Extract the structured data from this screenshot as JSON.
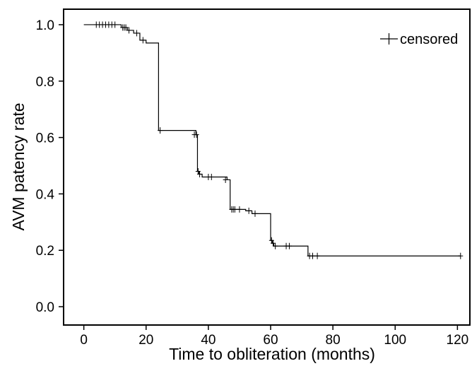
{
  "chart_data": {
    "type": "line",
    "title": "",
    "xlabel": "Time to obliteration (months)",
    "ylabel": "AVM patency rate",
    "xlim": [
      -6.5,
      124
    ],
    "ylim": [
      -0.065,
      1.055
    ],
    "x_ticks": [
      0,
      20,
      40,
      60,
      80,
      100,
      120
    ],
    "x_tick_labels": [
      "0",
      "20",
      "40",
      "60",
      "80",
      "100",
      "120"
    ],
    "y_ticks": [
      0.0,
      0.2,
      0.4,
      0.6,
      0.8,
      1.0
    ],
    "y_tick_labels": [
      "0.0",
      "0.2",
      "0.4",
      "0.6",
      "0.8",
      "1.0"
    ],
    "grid": false,
    "legend": {
      "placement": "top-right",
      "entries": [
        {
          "label": "censored",
          "marker": "plus"
        }
      ]
    },
    "series": [
      {
        "style": "step",
        "points": [
          [
            0,
            1.0
          ],
          [
            12,
            0.99
          ],
          [
            14,
            0.98
          ],
          [
            16,
            0.97
          ],
          [
            18,
            0.945
          ],
          [
            20,
            0.935
          ],
          [
            24,
            0.625
          ],
          [
            36,
            0.61
          ],
          [
            36.5,
            0.48
          ],
          [
            37,
            0.47
          ],
          [
            38,
            0.46
          ],
          [
            46,
            0.45
          ],
          [
            47,
            0.345
          ],
          [
            52,
            0.34
          ],
          [
            54,
            0.33
          ],
          [
            60,
            0.235
          ],
          [
            60.5,
            0.225
          ],
          [
            61,
            0.215
          ],
          [
            72,
            0.18
          ],
          [
            121,
            0.18
          ]
        ]
      }
    ],
    "censored": [
      [
        4,
        1.0
      ],
      [
        5,
        1.0
      ],
      [
        6,
        1.0
      ],
      [
        7,
        1.0
      ],
      [
        8,
        1.0
      ],
      [
        9,
        1.0
      ],
      [
        10,
        1.0
      ],
      [
        12.5,
        0.99
      ],
      [
        13,
        0.99
      ],
      [
        13.5,
        0.99
      ],
      [
        14.5,
        0.98
      ],
      [
        17,
        0.97
      ],
      [
        19,
        0.945
      ],
      [
        24.5,
        0.625
      ],
      [
        35.5,
        0.61
      ],
      [
        36.2,
        0.61
      ],
      [
        36.7,
        0.48
      ],
      [
        37.2,
        0.47
      ],
      [
        40,
        0.46
      ],
      [
        41,
        0.46
      ],
      [
        45.5,
        0.45
      ],
      [
        47.5,
        0.345
      ],
      [
        48,
        0.345
      ],
      [
        48.5,
        0.345
      ],
      [
        50,
        0.345
      ],
      [
        53,
        0.34
      ],
      [
        55,
        0.33
      ],
      [
        60.3,
        0.235
      ],
      [
        60.8,
        0.225
      ],
      [
        61.5,
        0.215
      ],
      [
        65,
        0.215
      ],
      [
        66,
        0.215
      ],
      [
        72.5,
        0.18
      ],
      [
        73.5,
        0.18
      ],
      [
        75,
        0.18
      ],
      [
        121,
        0.18
      ]
    ]
  }
}
